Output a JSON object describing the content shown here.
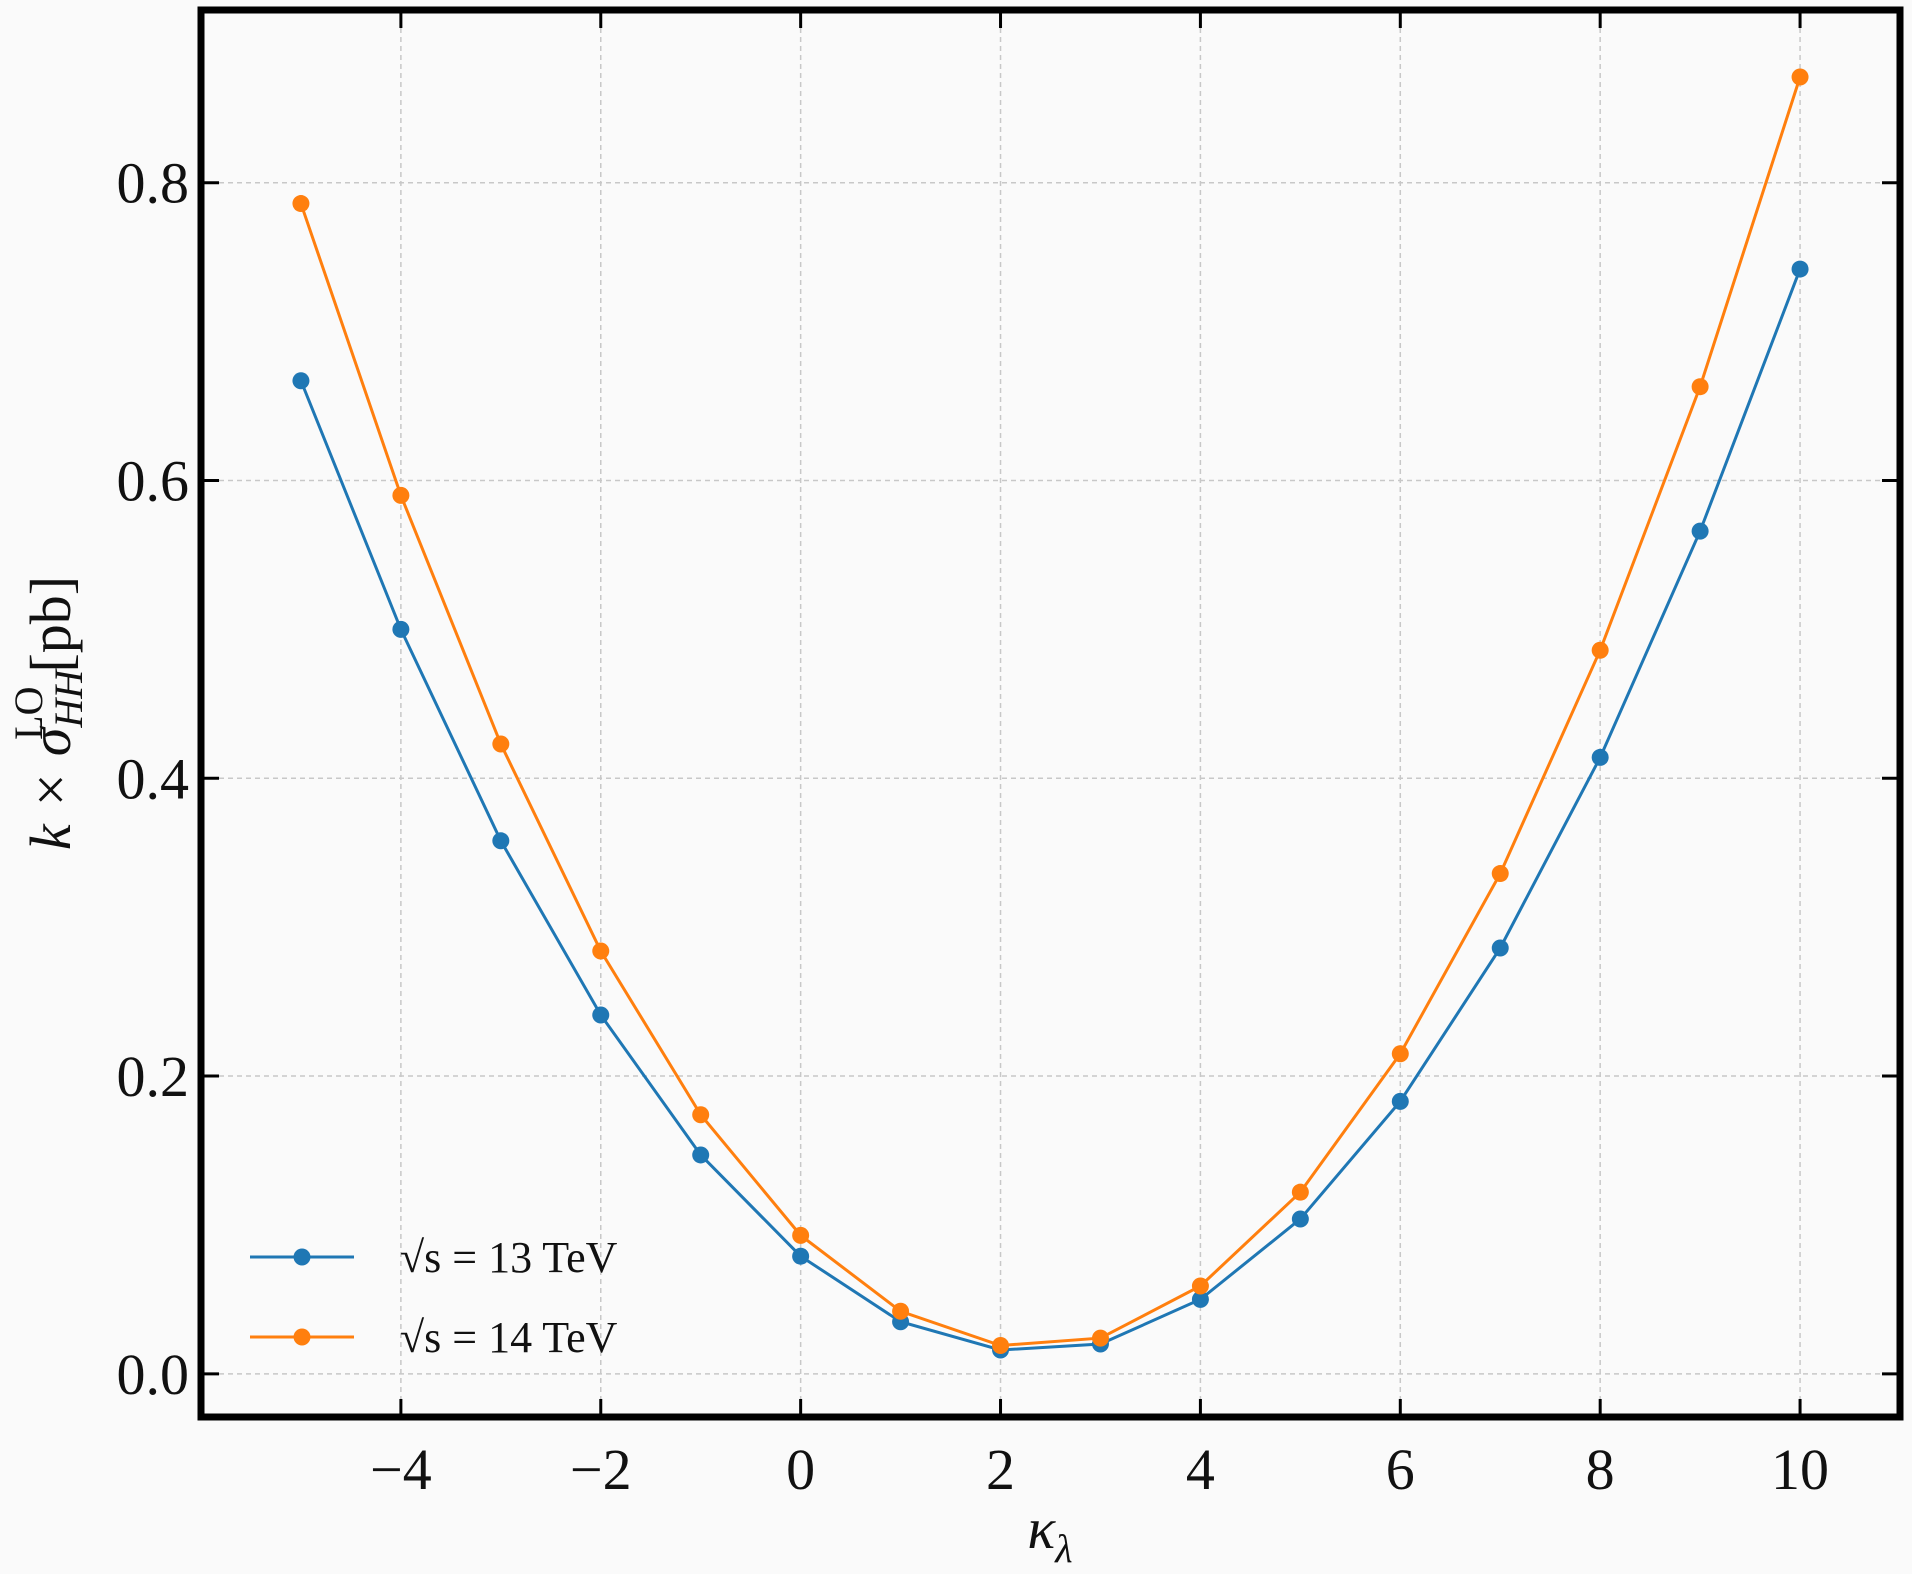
{
  "chart_data": {
    "type": "line",
    "x_label": {
      "main": "κ",
      "sub": "λ"
    },
    "y_label": {
      "main": "k × σ",
      "sub": "HH",
      "sup": "LO",
      "unit": "[pb]"
    },
    "x": [
      -5,
      -4,
      -3,
      -2,
      -1,
      0,
      1,
      2,
      3,
      4,
      5,
      6,
      7,
      8,
      9,
      10
    ],
    "series": [
      {
        "name": "√s = 13 TeV",
        "color": "#1f77b4",
        "values": [
          0.667,
          0.5,
          0.358,
          0.241,
          0.147,
          0.079,
          0.035,
          0.016,
          0.02,
          0.05,
          0.104,
          0.183,
          0.286,
          0.414,
          0.566,
          0.742
        ]
      },
      {
        "name": "√s = 14 TeV",
        "color": "#ff7f0e",
        "values": [
          0.786,
          0.59,
          0.423,
          0.284,
          0.174,
          0.093,
          0.042,
          0.019,
          0.024,
          0.059,
          0.122,
          0.215,
          0.336,
          0.486,
          0.663,
          0.871
        ]
      }
    ],
    "xlim": [
      -6,
      11
    ],
    "ylim": [
      -0.029,
      0.916
    ],
    "xticks": [
      {
        "value": -4,
        "label": "−4"
      },
      {
        "value": -2,
        "label": "−2"
      },
      0,
      2,
      4,
      6,
      8,
      10
    ],
    "yticks": [
      {
        "value": 0,
        "label": "0.0"
      },
      0.2,
      0.4,
      0.6,
      0.8
    ],
    "grid": true,
    "legend": "lower left"
  }
}
